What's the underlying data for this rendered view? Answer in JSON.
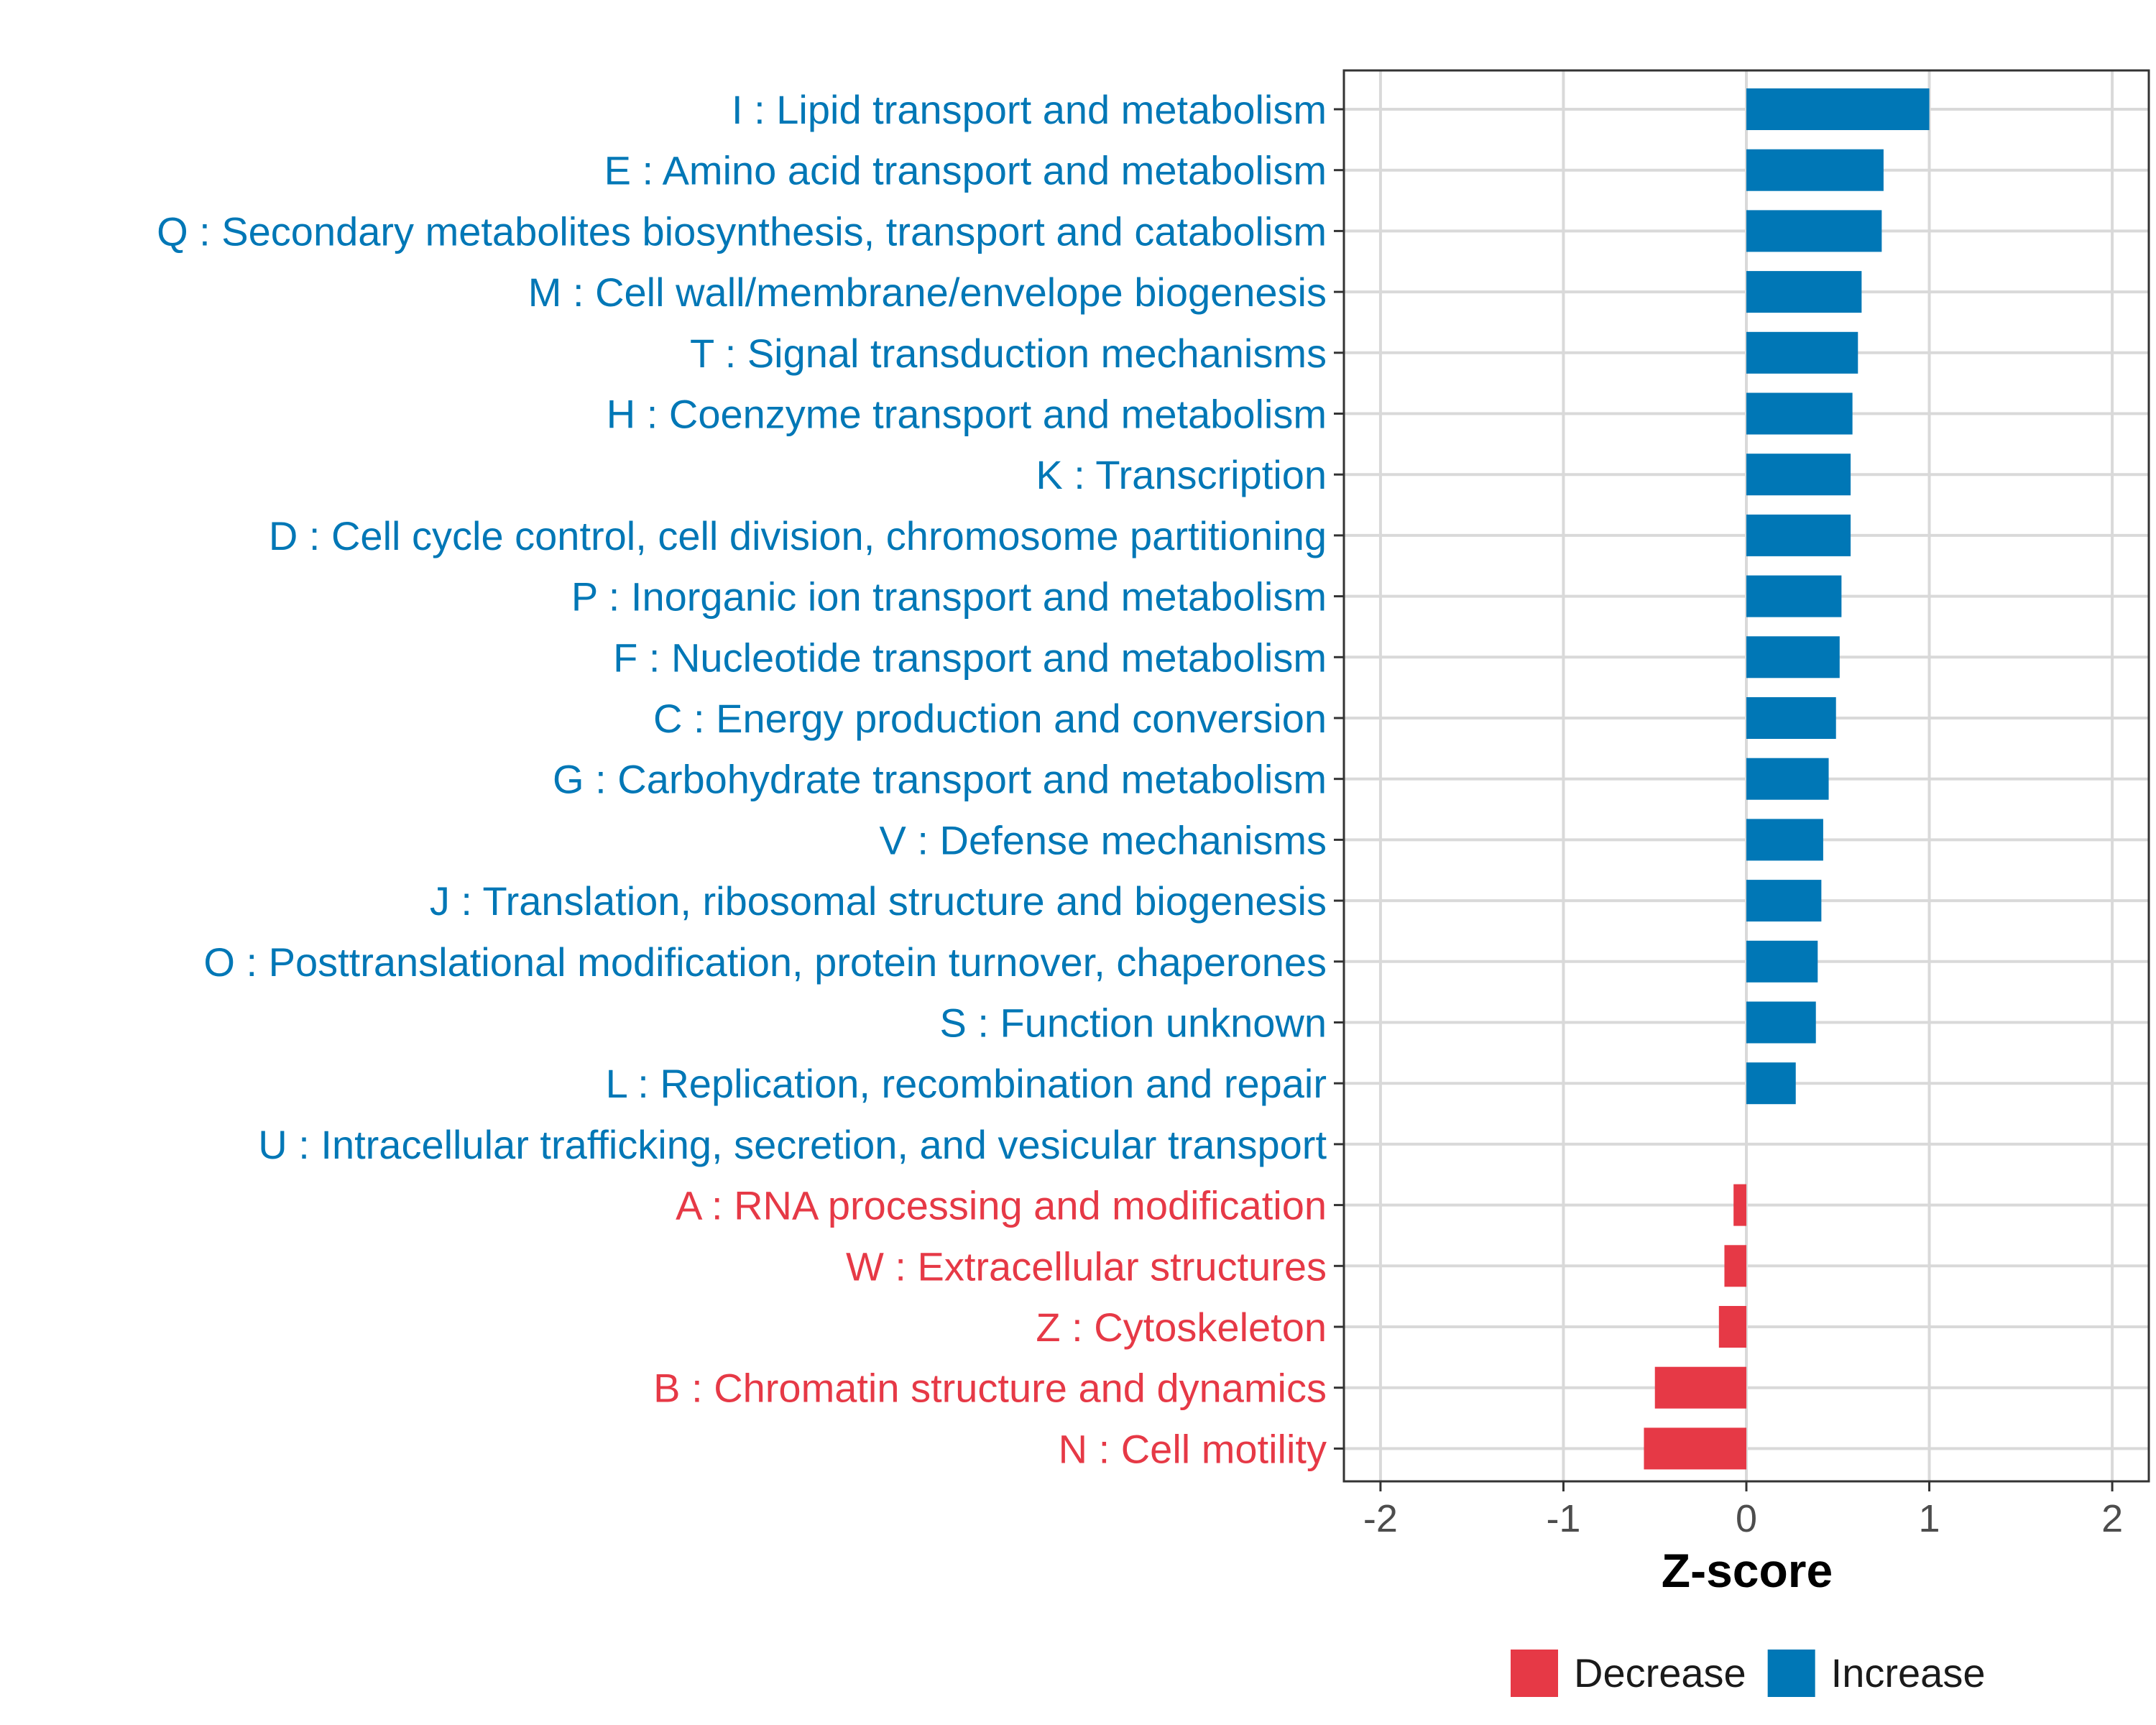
{
  "chart_data": {
    "type": "bar",
    "orientation": "horizontal",
    "xlabel": "Z-score",
    "xlim": [
      -2.2,
      2.2
    ],
    "xticks": [
      -2,
      -1,
      0,
      1,
      2
    ],
    "grid": true,
    "legend_position": "bottom",
    "categories": [
      "I : Lipid transport and metabolism",
      "E : Amino acid transport and metabolism",
      "Q : Secondary metabolites biosynthesis, transport and catabolism",
      "M : Cell wall/membrane/envelope biogenesis",
      "T : Signal transduction mechanisms",
      "H : Coenzyme transport and metabolism",
      "K : Transcription",
      "D : Cell cycle control, cell division, chromosome partitioning",
      "P : Inorganic ion transport and metabolism",
      "F : Nucleotide transport and metabolism",
      "C : Energy production and conversion",
      "G : Carbohydrate transport and metabolism",
      "V : Defense mechanisms",
      "J : Translation, ribosomal structure and biogenesis",
      "O : Posttranslational modification, protein turnover, chaperones",
      "S : Function unknown",
      "L : Replication, recombination and repair",
      "U : Intracellular trafficking, secretion, and vesicular transport",
      "A : RNA processing and modification",
      "W : Extracellular structures",
      "Z : Cytoskeleton",
      "B : Chromatin structure and dynamics",
      "N : Cell motility"
    ],
    "values": [
      1.0,
      0.75,
      0.74,
      0.63,
      0.61,
      0.58,
      0.57,
      0.57,
      0.52,
      0.51,
      0.49,
      0.45,
      0.42,
      0.41,
      0.39,
      0.38,
      0.27,
      0.0,
      -0.07,
      -0.12,
      -0.15,
      -0.5,
      -0.56
    ],
    "direction": [
      "Increase",
      "Increase",
      "Increase",
      "Increase",
      "Increase",
      "Increase",
      "Increase",
      "Increase",
      "Increase",
      "Increase",
      "Increase",
      "Increase",
      "Increase",
      "Increase",
      "Increase",
      "Increase",
      "Increase",
      "Increase",
      "Decrease",
      "Decrease",
      "Decrease",
      "Decrease",
      "Decrease"
    ],
    "legend": [
      {
        "name": "Decrease",
        "color": "#E63946"
      },
      {
        "name": "Increase",
        "color": "#0077B6"
      }
    ]
  }
}
